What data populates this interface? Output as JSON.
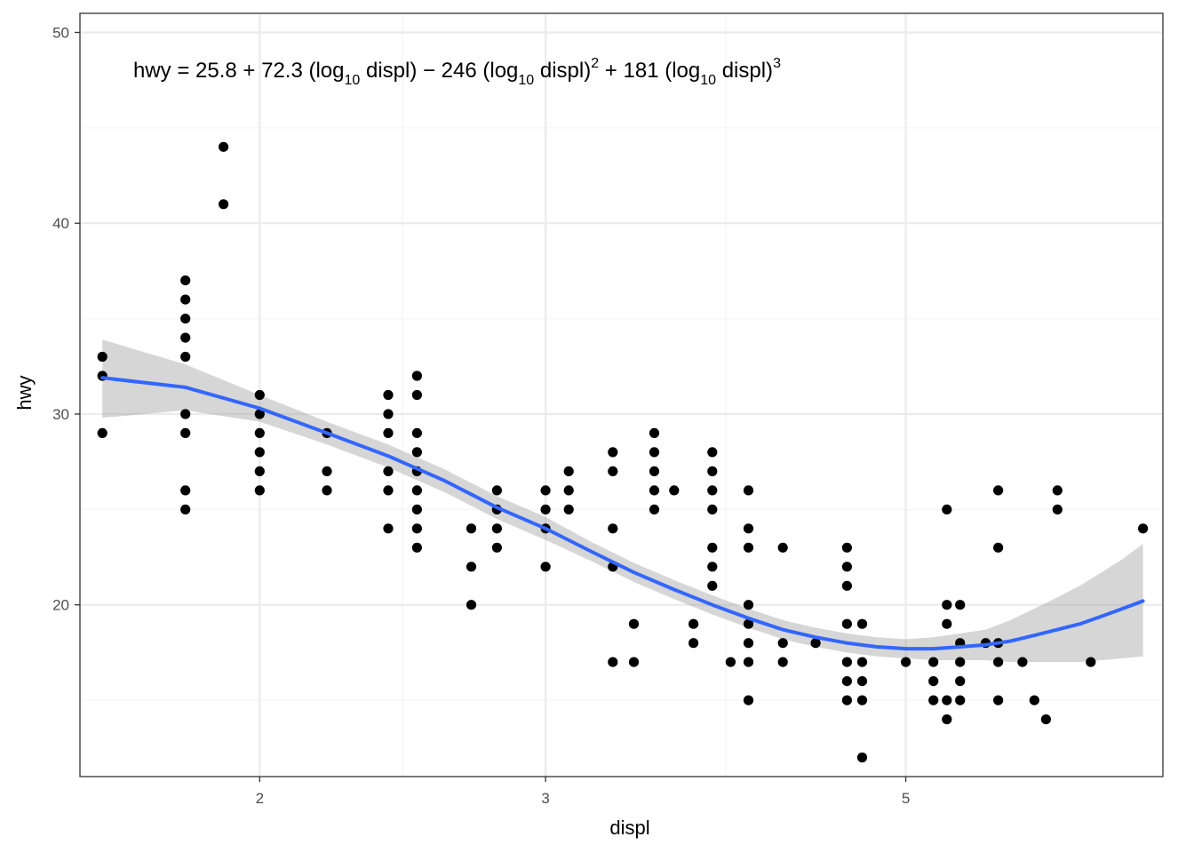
{
  "chart_data": {
    "type": "scatter",
    "title": "",
    "xlabel": "displ",
    "ylabel": "hwy",
    "x_scale": "log10",
    "xlim": [
      1.55,
      7.2
    ],
    "ylim": [
      11,
      51
    ],
    "x_major_ticks": [
      2,
      3,
      5
    ],
    "x_tick_labels": [
      "2",
      "3",
      "5"
    ],
    "x_minor_breaks": [
      2.449,
      3.873
    ],
    "y_major_ticks": [
      20,
      30,
      40,
      50
    ],
    "y_tick_labels": [
      "20",
      "30",
      "40",
      "50"
    ],
    "y_minor_breaks": [
      15,
      25,
      35,
      45
    ],
    "grid": true,
    "equation": {
      "prefix": "hwy = 25.8 + 72.3 (log",
      "sub1": "10",
      "mid1": " displ) − 246 (log",
      "sub2": "10",
      "mid2": " displ)",
      "sup1": "2",
      "mid3": " + 181 (log",
      "sub3": "10",
      "mid4": " displ)",
      "sup2": "3"
    },
    "points": [
      [
        1.6,
        33
      ],
      [
        1.6,
        32
      ],
      [
        1.6,
        29
      ],
      [
        1.8,
        37
      ],
      [
        1.8,
        36
      ],
      [
        1.8,
        35
      ],
      [
        1.8,
        34
      ],
      [
        1.8,
        33
      ],
      [
        1.8,
        30
      ],
      [
        1.8,
        29
      ],
      [
        1.8,
        26
      ],
      [
        1.8,
        25
      ],
      [
        1.9,
        44
      ],
      [
        1.9,
        41
      ],
      [
        2.0,
        31
      ],
      [
        2.0,
        30
      ],
      [
        2.0,
        29
      ],
      [
        2.0,
        28
      ],
      [
        2.0,
        27
      ],
      [
        2.0,
        26
      ],
      [
        2.2,
        29
      ],
      [
        2.2,
        27
      ],
      [
        2.2,
        26
      ],
      [
        2.4,
        31
      ],
      [
        2.4,
        30
      ],
      [
        2.4,
        29
      ],
      [
        2.4,
        27
      ],
      [
        2.4,
        26
      ],
      [
        2.4,
        24
      ],
      [
        2.5,
        32
      ],
      [
        2.5,
        31
      ],
      [
        2.5,
        29
      ],
      [
        2.5,
        28
      ],
      [
        2.5,
        27
      ],
      [
        2.5,
        26
      ],
      [
        2.5,
        25
      ],
      [
        2.5,
        24
      ],
      [
        2.5,
        23
      ],
      [
        2.7,
        24
      ],
      [
        2.7,
        22
      ],
      [
        2.7,
        20
      ],
      [
        2.8,
        26
      ],
      [
        2.8,
        25
      ],
      [
        2.8,
        24
      ],
      [
        2.8,
        23
      ],
      [
        3.0,
        26
      ],
      [
        3.0,
        25
      ],
      [
        3.0,
        24
      ],
      [
        3.0,
        22
      ],
      [
        3.1,
        27
      ],
      [
        3.1,
        26
      ],
      [
        3.1,
        25
      ],
      [
        3.3,
        28
      ],
      [
        3.3,
        27
      ],
      [
        3.3,
        24
      ],
      [
        3.3,
        22
      ],
      [
        3.3,
        17
      ],
      [
        3.4,
        19
      ],
      [
        3.4,
        17
      ],
      [
        3.5,
        29
      ],
      [
        3.5,
        28
      ],
      [
        3.5,
        27
      ],
      [
        3.5,
        26
      ],
      [
        3.5,
        25
      ],
      [
        3.6,
        26
      ],
      [
        3.7,
        19
      ],
      [
        3.7,
        18
      ],
      [
        3.8,
        28
      ],
      [
        3.8,
        27
      ],
      [
        3.8,
        26
      ],
      [
        3.8,
        25
      ],
      [
        3.8,
        23
      ],
      [
        3.8,
        22
      ],
      [
        3.8,
        21
      ],
      [
        3.9,
        17
      ],
      [
        4.0,
        26
      ],
      [
        4.0,
        24
      ],
      [
        4.0,
        23
      ],
      [
        4.0,
        20
      ],
      [
        4.0,
        19
      ],
      [
        4.0,
        18
      ],
      [
        4.0,
        17
      ],
      [
        4.0,
        15
      ],
      [
        4.2,
        23
      ],
      [
        4.2,
        18
      ],
      [
        4.2,
        17
      ],
      [
        4.4,
        18
      ],
      [
        4.6,
        23
      ],
      [
        4.6,
        22
      ],
      [
        4.6,
        21
      ],
      [
        4.6,
        19
      ],
      [
        4.6,
        17
      ],
      [
        4.6,
        16
      ],
      [
        4.6,
        15
      ],
      [
        4.7,
        19
      ],
      [
        4.7,
        17
      ],
      [
        4.7,
        16
      ],
      [
        4.7,
        15
      ],
      [
        4.7,
        12
      ],
      [
        5.0,
        17
      ],
      [
        5.2,
        17
      ],
      [
        5.2,
        16
      ],
      [
        5.2,
        15
      ],
      [
        5.3,
        25
      ],
      [
        5.3,
        20
      ],
      [
        5.3,
        19
      ],
      [
        5.3,
        15
      ],
      [
        5.3,
        14
      ],
      [
        5.4,
        20
      ],
      [
        5.4,
        18
      ],
      [
        5.4,
        17
      ],
      [
        5.4,
        16
      ],
      [
        5.4,
        15
      ],
      [
        5.6,
        18
      ],
      [
        5.7,
        26
      ],
      [
        5.7,
        23
      ],
      [
        5.7,
        18
      ],
      [
        5.7,
        17
      ],
      [
        5.7,
        15
      ],
      [
        5.9,
        17
      ],
      [
        6.0,
        15
      ],
      [
        6.1,
        14
      ],
      [
        6.2,
        26
      ],
      [
        6.2,
        25
      ],
      [
        6.5,
        17
      ],
      [
        7.0,
        24
      ]
    ],
    "fit": {
      "method": "lm, y ~ poly(log10(x), 3)",
      "color": "#3366ff",
      "band_color": "#999999",
      "x": [
        1.6,
        1.8,
        2.0,
        2.2,
        2.4,
        2.6,
        2.8,
        3.0,
        3.2,
        3.4,
        3.6,
        3.8,
        4.0,
        4.2,
        4.4,
        4.6,
        4.8,
        5.0,
        5.2,
        5.4,
        5.6,
        5.8,
        6.0,
        6.2,
        6.4,
        6.6,
        6.8,
        7.0
      ],
      "y": [
        31.9,
        31.4,
        30.3,
        29.0,
        27.8,
        26.5,
        25.1,
        24.0,
        22.8,
        21.7,
        20.8,
        20.0,
        19.3,
        18.7,
        18.3,
        18.0,
        17.8,
        17.7,
        17.7,
        17.8,
        17.9,
        18.1,
        18.4,
        18.7,
        19.0,
        19.4,
        19.8,
        20.2
      ],
      "lower": [
        29.8,
        30.2,
        29.6,
        28.4,
        27.2,
        25.9,
        24.5,
        23.4,
        22.3,
        21.2,
        20.3,
        19.5,
        18.8,
        18.2,
        17.8,
        17.5,
        17.3,
        17.2,
        17.1,
        17.1,
        17.1,
        17.0,
        17.0,
        17.0,
        17.0,
        17.1,
        17.2,
        17.3
      ],
      "upper": [
        33.9,
        32.6,
        31.0,
        29.6,
        28.4,
        27.1,
        25.7,
        24.6,
        23.3,
        22.2,
        21.3,
        20.5,
        19.8,
        19.2,
        18.8,
        18.5,
        18.3,
        18.2,
        18.3,
        18.5,
        18.7,
        19.2,
        19.8,
        20.4,
        21.0,
        21.7,
        22.4,
        23.2
      ]
    },
    "colors": {
      "point": "#000000",
      "panel_border": "#333333",
      "grid_major": "#ebebeb",
      "grid_minor": "#f5f5f5"
    }
  }
}
